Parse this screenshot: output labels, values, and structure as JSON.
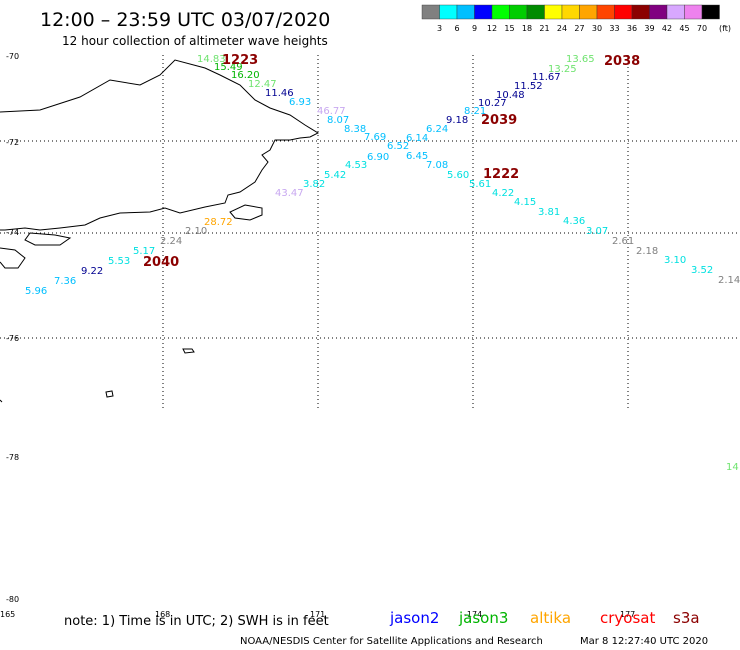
{
  "title": "12:00 – 23:59 UTC 03/07/2020",
  "subtitle": "12 hour collection of altimeter wave heights",
  "legend": {
    "unit": "(ft)",
    "colors": [
      "#808080",
      "#00ffff",
      "#00bfff",
      "#0000ff",
      "#00ff00",
      "#00cd00",
      "#008b00",
      "#ffff00",
      "#ffd700",
      "#ffa500",
      "#ff4500",
      "#ff0000",
      "#8b0000",
      "#800080",
      "#d8a8ff",
      "#ee82ee",
      "#000000"
    ],
    "labels": [
      "3",
      "6",
      "9",
      "12",
      "15",
      "18",
      "21",
      "24",
      "27",
      "30",
      "33",
      "36",
      "39",
      "42",
      "45",
      "70"
    ]
  },
  "lat_labels": [
    "-70",
    "-72",
    "-74",
    "-76",
    "-78",
    "-80"
  ],
  "lon_labels": [
    "165",
    "168",
    "171",
    "-174",
    "177"
  ],
  "track_labels": [
    "1223",
    "2038",
    "2039",
    "1222",
    "2040"
  ],
  "values": [
    {
      "text": "14.83",
      "color": "#6fe36f"
    },
    {
      "text": "15.49",
      "color": "#00b400"
    },
    {
      "text": "16.20",
      "color": "#00b400"
    },
    {
      "text": "12.47",
      "color": "#6fe36f"
    },
    {
      "text": "11.46",
      "color": "#000090"
    },
    {
      "text": "6.93",
      "color": "#00bfff"
    },
    {
      "text": "46.77",
      "color": "#c8a8f0"
    },
    {
      "text": "8.07",
      "color": "#00bfff"
    },
    {
      "text": "8.38",
      "color": "#00bfff"
    },
    {
      "text": "7.69",
      "color": "#00bfff"
    },
    {
      "text": "6.52",
      "color": "#00bfff"
    },
    {
      "text": "6.90",
      "color": "#00bfff"
    },
    {
      "text": "4.53",
      "color": "#00e0e0"
    },
    {
      "text": "5.42",
      "color": "#00e0e0"
    },
    {
      "text": "3.82",
      "color": "#00e0e0"
    },
    {
      "text": "43.47",
      "color": "#c8a8f0"
    },
    {
      "text": "28.72",
      "color": "#ffa500"
    },
    {
      "text": "2.10",
      "color": "#808080"
    },
    {
      "text": "2.24",
      "color": "#808080"
    },
    {
      "text": "5.17",
      "color": "#00e0e0"
    },
    {
      "text": "5.53",
      "color": "#00e0e0"
    },
    {
      "text": "9.22",
      "color": "#000090"
    },
    {
      "text": "7.36",
      "color": "#00bfff"
    },
    {
      "text": "5.96",
      "color": "#00bfff"
    },
    {
      "text": "13.65",
      "color": "#6fe36f"
    },
    {
      "text": "13.25",
      "color": "#6fe36f"
    },
    {
      "text": "11.67",
      "color": "#000090"
    },
    {
      "text": "11.52",
      "color": "#000090"
    },
    {
      "text": "10.48",
      "color": "#000090"
    },
    {
      "text": "10.27",
      "color": "#000090"
    },
    {
      "text": "8.21",
      "color": "#00bfff"
    },
    {
      "text": "9.18",
      "color": "#000090"
    },
    {
      "text": "6.24",
      "color": "#00bfff"
    },
    {
      "text": "6.14",
      "color": "#00bfff"
    },
    {
      "text": "6.45",
      "color": "#00bfff"
    },
    {
      "text": "7.08",
      "color": "#00bfff"
    },
    {
      "text": "5.60",
      "color": "#00e0e0"
    },
    {
      "text": "5.61",
      "color": "#00e0e0"
    },
    {
      "text": "4.22",
      "color": "#00e0e0"
    },
    {
      "text": "4.15",
      "color": "#00e0e0"
    },
    {
      "text": "3.81",
      "color": "#00e0e0"
    },
    {
      "text": "4.36",
      "color": "#00e0e0"
    },
    {
      "text": "3.07",
      "color": "#00e0e0"
    },
    {
      "text": "2.61",
      "color": "#808080"
    },
    {
      "text": "2.18",
      "color": "#808080"
    },
    {
      "text": "3.10",
      "color": "#00e0e0"
    },
    {
      "text": "3.52",
      "color": "#00e0e0"
    },
    {
      "text": "2.14",
      "color": "#808080"
    },
    {
      "text": "14",
      "color": "#6fe36f"
    }
  ],
  "note": "note:  1) Time is in UTC;  2) SWH is in feet",
  "satellites": [
    {
      "name": "jason2",
      "color": "#0000ff"
    },
    {
      "name": "jason3",
      "color": "#00b400"
    },
    {
      "name": "altika",
      "color": "#ffa500"
    },
    {
      "name": "cryosat",
      "color": "#ff0000"
    },
    {
      "name": "s3a",
      "color": "#8b0000"
    }
  ],
  "credit": "NOAA/NESDIS Center for Satellite Applications and Research",
  "timestamp": "Mar  8 12:27:40 UTC 2020"
}
